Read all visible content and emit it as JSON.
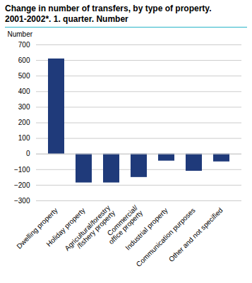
{
  "chart_data": {
    "type": "bar",
    "title": "Change in number of transfers, by type of property.",
    "subtitle": "2001-2002*. 1. quarter. Number",
    "y_label": "Number",
    "categories": [
      "Dwelling property",
      "Holiday property",
      "Agricultural/forestry\n/fishery property",
      "Commercial/\noffice property",
      "Industrial property",
      "Communication purposes",
      "Other and not specified"
    ],
    "values": [
      610,
      -185,
      -185,
      -150,
      -45,
      -110,
      -50
    ],
    "color": "#1f3a7a",
    "ylim": [
      -300,
      700
    ],
    "yticks": [
      -300,
      -200,
      -100,
      0,
      100,
      200,
      300,
      400,
      500,
      600,
      700
    ],
    "grid": true
  }
}
